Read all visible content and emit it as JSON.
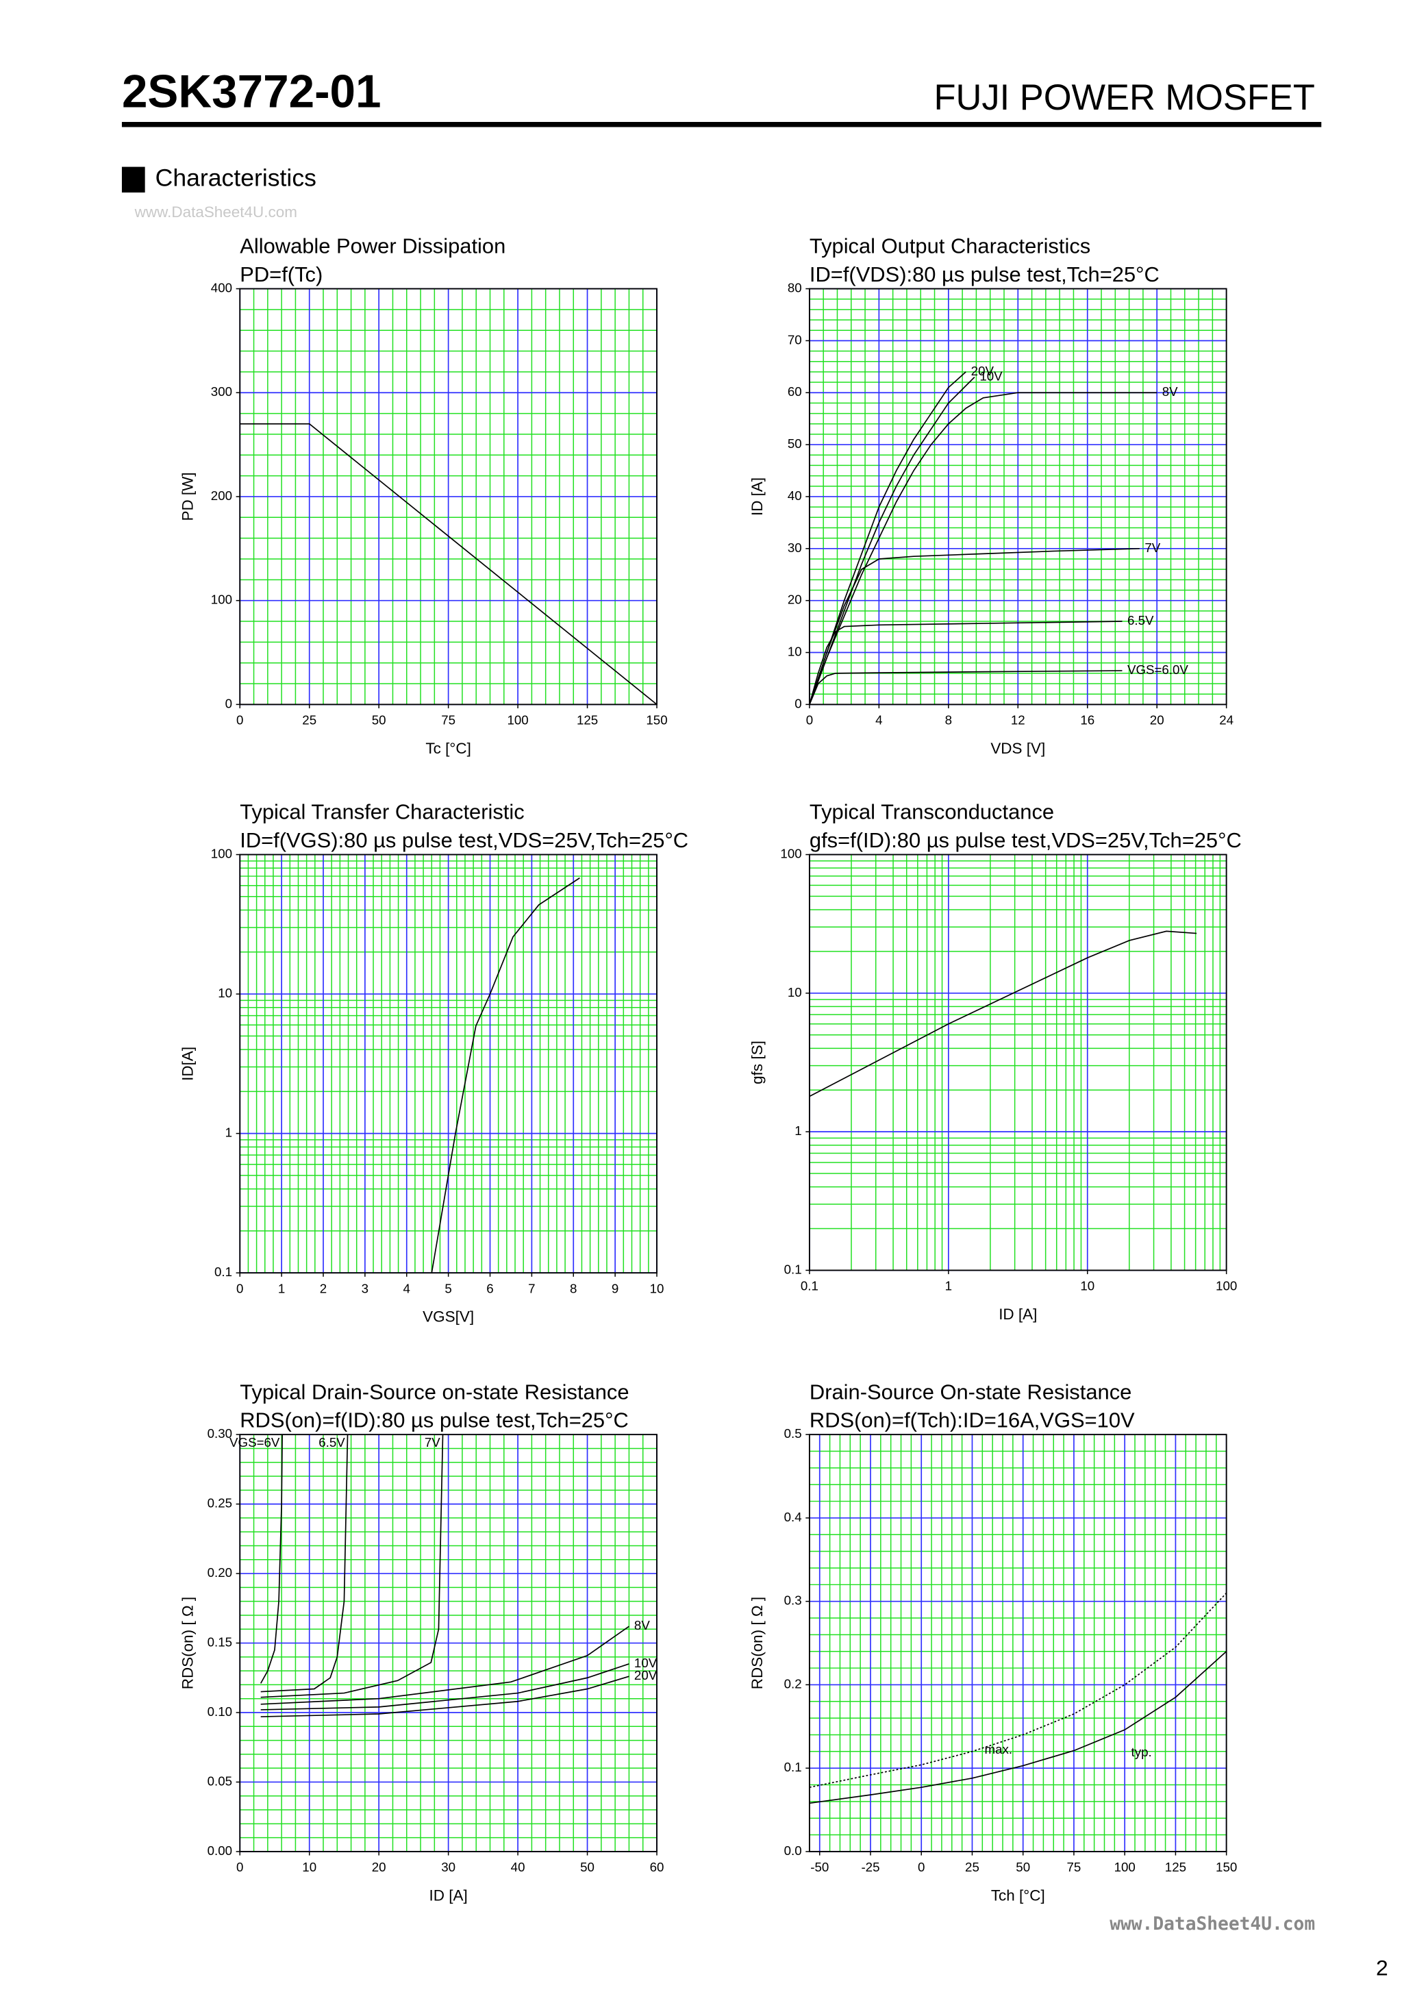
{
  "header": {
    "part_number": "2SK3772-01",
    "product_line": "FUJI POWER MOSFET",
    "section": "Characteristics",
    "watermark_top": "www.DataSheet4U.com",
    "watermark_bottom": "www.DataSheet4U.com",
    "page_number": "2"
  },
  "chart_data": [
    {
      "type": "line",
      "title": "Allowable Power Dissipation",
      "subtitle": "PD=f(Tc)",
      "xlabel": "Tc [°C]",
      "ylabel": "PD [W]",
      "xlim": [
        0,
        150
      ],
      "xticks": [
        0,
        25,
        50,
        75,
        100,
        125,
        150
      ],
      "ylim": [
        0,
        400
      ],
      "yticks": [
        0,
        100,
        200,
        300,
        400
      ],
      "grid": true,
      "series": [
        {
          "color": "#000000",
          "x": [
            0,
            25,
            150
          ],
          "values": [
            270,
            270,
            0
          ]
        }
      ]
    },
    {
      "type": "line",
      "title": "Typical Output Characteristics",
      "subtitle": "ID=f(VDS):80 µs pulse test,Tch=25°C",
      "xlabel": "VDS [V]",
      "ylabel": "ID [A]",
      "xlim": [
        0,
        24
      ],
      "xticks": [
        0,
        4,
        8,
        12,
        16,
        20,
        24
      ],
      "ylim": [
        0,
        80
      ],
      "yticks": [
        0,
        10,
        20,
        30,
        40,
        50,
        60,
        70,
        80
      ],
      "grid": true,
      "series": [
        {
          "name": "20V",
          "color": "#000000",
          "x": [
            0,
            1,
            2,
            3,
            4,
            5,
            6,
            7,
            8,
            9
          ],
          "values": [
            0,
            10,
            20,
            29,
            38,
            45,
            51,
            56,
            61,
            64
          ]
        },
        {
          "name": "10V",
          "color": "#000000",
          "x": [
            0,
            1,
            2,
            3,
            4,
            5,
            6,
            7,
            8,
            9.5
          ],
          "values": [
            0,
            9,
            18,
            27,
            35,
            42,
            48,
            53,
            58,
            63
          ]
        },
        {
          "name": "8V",
          "color": "#000000",
          "x": [
            0,
            1,
            2,
            3,
            4,
            5,
            6,
            7,
            8,
            9,
            10,
            12,
            16,
            20
          ],
          "values": [
            0,
            9,
            17,
            25,
            32,
            39,
            45,
            50,
            54,
            57,
            59,
            60,
            60,
            60
          ]
        },
        {
          "name": "7V",
          "color": "#000000",
          "x": [
            0,
            1,
            2,
            3,
            4,
            6,
            10,
            14,
            19
          ],
          "values": [
            0,
            10,
            19,
            26,
            28,
            28.5,
            29,
            29.5,
            30
          ]
        },
        {
          "name": "6.5V",
          "color": "#000000",
          "x": [
            0,
            0.5,
            1,
            1.5,
            2,
            4,
            10,
            18
          ],
          "values": [
            0,
            6,
            11,
            14,
            15,
            15.3,
            15.6,
            16
          ]
        },
        {
          "name": "VGS=6.0V",
          "color": "#000000",
          "x": [
            0,
            0.5,
            1,
            1.5,
            4,
            10,
            18
          ],
          "values": [
            0,
            4,
            5.5,
            6,
            6.1,
            6.3,
            6.5
          ]
        }
      ]
    },
    {
      "type": "line",
      "title": "Typical Transfer Characteristic",
      "subtitle": "ID=f(VGS):80 µs pulse test,VDS=25V,Tch=25°C",
      "xlabel": "VGS[V]",
      "ylabel": "ID[A]",
      "xlim": [
        0,
        10
      ],
      "xticks": [
        0,
        1,
        2,
        3,
        4,
        5,
        6,
        7,
        8,
        9,
        10
      ],
      "ylim": [
        0.1,
        100
      ],
      "yticks": [
        0.1,
        1,
        10,
        100
      ],
      "yscale": "log",
      "grid": true,
      "series": [
        {
          "color": "#000000",
          "x": [
            4.6,
            5.17,
            5.66,
            6.0,
            6.55,
            7.17,
            8.15
          ],
          "values": [
            0.1,
            1,
            5.9,
            10,
            25.7,
            43.6,
            68
          ]
        }
      ]
    },
    {
      "type": "line",
      "title": "Typical Transconductance",
      "subtitle": "gfs=f(ID):80 µs pulse test,VDS=25V,Tch=25°C",
      "xlabel": "ID [A]",
      "ylabel": "gfs [S]",
      "xlim": [
        0.1,
        100
      ],
      "xticks": [
        0.1,
        1,
        10,
        100
      ],
      "xscale": "log",
      "ylim": [
        0.1,
        100
      ],
      "yticks": [
        0.1,
        1,
        10,
        100
      ],
      "yscale": "log",
      "grid": true,
      "series": [
        {
          "color": "#000000",
          "x": [
            0.1,
            1,
            10,
            20,
            37,
            61
          ],
          "values": [
            1.8,
            6,
            18,
            24,
            28,
            27
          ]
        }
      ]
    },
    {
      "type": "line",
      "title": "Typical Drain-Source on-state Resistance",
      "subtitle": "RDS(on)=f(ID):80  µs pulse test,Tch=25°C",
      "xlabel": "ID [A]",
      "ylabel": "RDS(on) [ Ω ]",
      "xlim": [
        0,
        60
      ],
      "xticks": [
        0,
        10,
        20,
        30,
        40,
        50,
        60
      ],
      "ylim": [
        0,
        0.3
      ],
      "yticks": [
        {
          "value": 0,
          "label": "0.00"
        },
        0.05,
        {
          "value": 0.1,
          "label": "0.10"
        },
        0.15,
        {
          "value": 0.2,
          "label": "0.20"
        },
        0.25,
        {
          "value": 0.3,
          "label": "0.30"
        }
      ],
      "grid": true,
      "series": [
        {
          "name": "VGS=6V",
          "color": "#000000",
          "x": [
            3,
            4,
            5,
            5.6,
            6,
            6.1
          ],
          "values": [
            0.121,
            0.13,
            0.145,
            0.18,
            0.25,
            0.3
          ]
        },
        {
          "name": "6.5V",
          "color": "#000000",
          "x": [
            3,
            10.7,
            13,
            14,
            15,
            15.5
          ],
          "values": [
            0.115,
            0.117,
            0.125,
            0.14,
            0.18,
            0.3
          ]
        },
        {
          "name": "7V",
          "color": "#000000",
          "x": [
            3,
            15,
            22.7,
            27.5,
            28.6,
            29.2
          ],
          "values": [
            0.111,
            0.114,
            0.123,
            0.136,
            0.16,
            0.3
          ]
        },
        {
          "name": "8V",
          "color": "#000000",
          "x": [
            3,
            20,
            39,
            50,
            56
          ],
          "values": [
            0.106,
            0.11,
            0.122,
            0.141,
            0.162
          ]
        },
        {
          "name": "10V",
          "color": "#000000",
          "x": [
            3,
            20,
            40,
            50,
            56
          ],
          "values": [
            0.102,
            0.104,
            0.114,
            0.125,
            0.135
          ]
        },
        {
          "name": "20V",
          "color": "#000000",
          "x": [
            3,
            20,
            40,
            50,
            56
          ],
          "values": [
            0.097,
            0.099,
            0.108,
            0.117,
            0.126
          ]
        }
      ]
    },
    {
      "type": "line",
      "title": "Drain-Source On-state Resistance",
      "subtitle": "RDS(on)=f(Tch):ID=16A,VGS=10V",
      "xlabel": "Tch [°C]",
      "ylabel": "RDS(on) [ Ω ]",
      "xlim": [
        -55,
        150
      ],
      "xticks": [
        -50,
        -25,
        0,
        25,
        50,
        75,
        100,
        125,
        150
      ],
      "ylim": [
        0,
        0.5
      ],
      "yticks": [
        {
          "value": 0,
          "label": "0.0"
        },
        0.1,
        0.2,
        0.3,
        0.4,
        0.5
      ],
      "grid": true,
      "series": [
        {
          "name": "max.",
          "color": "#000000",
          "style": "dotted",
          "x": [
            -55,
            -25,
            0,
            25,
            50,
            75,
            100,
            125,
            150
          ],
          "values": [
            0.077,
            0.092,
            0.104,
            0.12,
            0.14,
            0.165,
            0.2,
            0.245,
            0.31
          ]
        },
        {
          "name": "typ.",
          "color": "#000000",
          "x": [
            -55,
            -25,
            0,
            25,
            50,
            75,
            100,
            125,
            150
          ],
          "values": [
            0.058,
            0.068,
            0.077,
            0.088,
            0.103,
            0.121,
            0.146,
            0.185,
            0.24
          ]
        }
      ]
    }
  ]
}
